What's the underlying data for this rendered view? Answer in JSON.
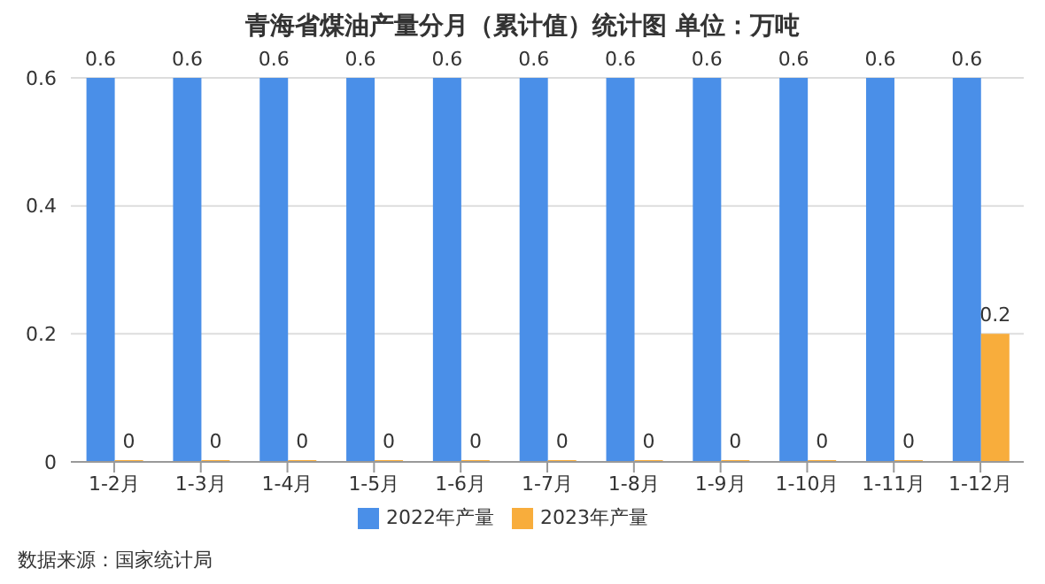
{
  "chart_data": {
    "type": "bar",
    "title": "青海省煤油产量分月（累计值）统计图 单位：万吨",
    "categories": [
      "1-2月",
      "1-3月",
      "1-4月",
      "1-5月",
      "1-6月",
      "1-7月",
      "1-8月",
      "1-9月",
      "1-10月",
      "1-11月",
      "1-12月"
    ],
    "series": [
      {
        "name": "2022年产量",
        "color": "#4a8fe8",
        "values": [
          0.6,
          0.6,
          0.6,
          0.6,
          0.6,
          0.6,
          0.6,
          0.6,
          0.6,
          0.6,
          0.6
        ]
      },
      {
        "name": "2023年产量",
        "color": "#f8ad3c",
        "values": [
          0,
          0,
          0,
          0,
          0,
          0,
          0,
          0,
          0,
          0,
          0.2
        ]
      }
    ],
    "ylim": [
      0,
      0.6
    ],
    "yticks": [
      0,
      0.2,
      0.4,
      0.6
    ],
    "grid": "y",
    "legend": "bottom",
    "data_labels": true,
    "annotations": [
      "数据来源：国家统计局"
    ]
  }
}
